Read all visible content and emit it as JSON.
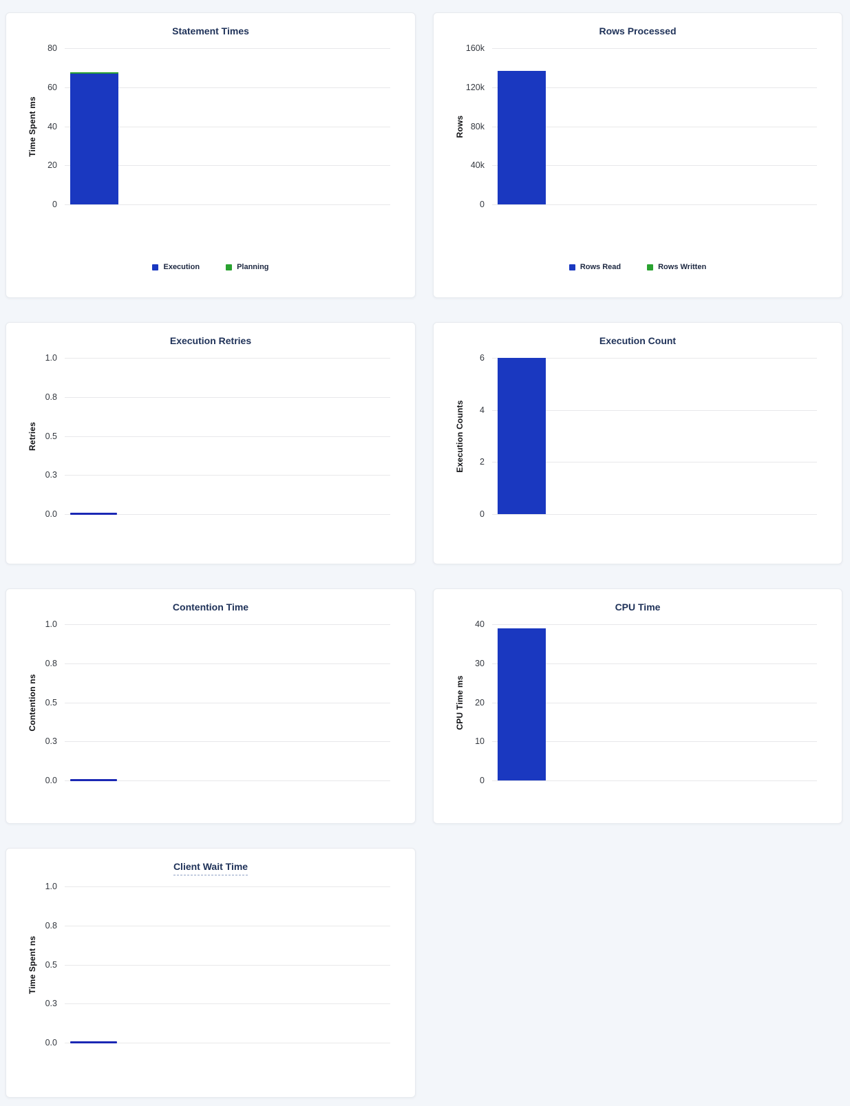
{
  "page": {
    "background": "#f3f6fa",
    "card_background": "#ffffff",
    "card_border": "#e7eaef",
    "gridline_color": "#e8e8ea",
    "title_color": "#1e3158",
    "tick_color": "#34383f",
    "zero_line_color": "#1b28b4"
  },
  "chart_data": [
    {
      "type": "bar",
      "title": "Statement Times",
      "ylabel": "Time Spent ms",
      "xlabel": "",
      "ylim": [
        0,
        80
      ],
      "yticks": [
        "80",
        "60",
        "40",
        "20",
        "0"
      ],
      "grid": true,
      "stacked": true,
      "legend": true,
      "legend_position": "bottom",
      "categories": [
        ""
      ],
      "series": [
        {
          "name": "Execution",
          "values": [
            67
          ],
          "color": "#1a38c0"
        },
        {
          "name": "Planning",
          "values": [
            0.8
          ],
          "color": "#2aa230"
        }
      ]
    },
    {
      "type": "bar",
      "title": "Rows Processed",
      "ylabel": "Rows",
      "xlabel": "",
      "ylim": [
        0,
        160000
      ],
      "yticks": [
        "160k",
        "120k",
        "80k",
        "40k",
        "0"
      ],
      "grid": true,
      "stacked": true,
      "legend": true,
      "legend_position": "bottom",
      "categories": [
        ""
      ],
      "series": [
        {
          "name": "Rows Read",
          "values": [
            137000
          ],
          "color": "#1a38c0"
        },
        {
          "name": "Rows Written",
          "values": [
            0
          ],
          "color": "#2aa230"
        }
      ]
    },
    {
      "type": "bar",
      "title": "Execution Retries",
      "ylabel": "Retries",
      "xlabel": "",
      "ylim": [
        0,
        1
      ],
      "yticks": [
        "1.0",
        "0.8",
        "0.5",
        "0.3",
        "0.0"
      ],
      "grid": true,
      "stacked": false,
      "legend": false,
      "categories": [
        ""
      ],
      "series": [
        {
          "name": "Execution Retries",
          "values": [
            0
          ],
          "color": "#1a38c0"
        }
      ]
    },
    {
      "type": "bar",
      "title": "Execution Count",
      "ylabel": "Execution Counts",
      "xlabel": "",
      "ylim": [
        0,
        6
      ],
      "yticks": [
        "6",
        "4",
        "2",
        "0"
      ],
      "grid": true,
      "stacked": false,
      "legend": false,
      "categories": [
        ""
      ],
      "series": [
        {
          "name": "Execution Count",
          "values": [
            6
          ],
          "color": "#1a38c0"
        }
      ]
    },
    {
      "type": "bar",
      "title": "Contention Time",
      "ylabel": "Contention ns",
      "xlabel": "",
      "ylim": [
        0,
        1
      ],
      "yticks": [
        "1.0",
        "0.8",
        "0.5",
        "0.3",
        "0.0"
      ],
      "grid": true,
      "stacked": false,
      "legend": false,
      "categories": [
        ""
      ],
      "series": [
        {
          "name": "Contention Time",
          "values": [
            0
          ],
          "color": "#1a38c0"
        }
      ]
    },
    {
      "type": "bar",
      "title": "CPU Time",
      "ylabel": "CPU Time ms",
      "xlabel": "",
      "ylim": [
        0,
        40
      ],
      "yticks": [
        "40",
        "30",
        "20",
        "10",
        "0"
      ],
      "grid": true,
      "stacked": false,
      "legend": false,
      "categories": [
        ""
      ],
      "series": [
        {
          "name": "CPU Time",
          "values": [
            39
          ],
          "color": "#1a38c0"
        }
      ]
    },
    {
      "type": "bar",
      "title": "Client Wait Time",
      "title_underlined": true,
      "ylabel": "Time Spent ns",
      "xlabel": "",
      "ylim": [
        0,
        1
      ],
      "yticks": [
        "1.0",
        "0.8",
        "0.5",
        "0.3",
        "0.0"
      ],
      "grid": true,
      "stacked": false,
      "legend": false,
      "categories": [
        ""
      ],
      "series": [
        {
          "name": "Client Wait Time",
          "values": [
            0
          ],
          "color": "#1a38c0"
        }
      ]
    }
  ]
}
